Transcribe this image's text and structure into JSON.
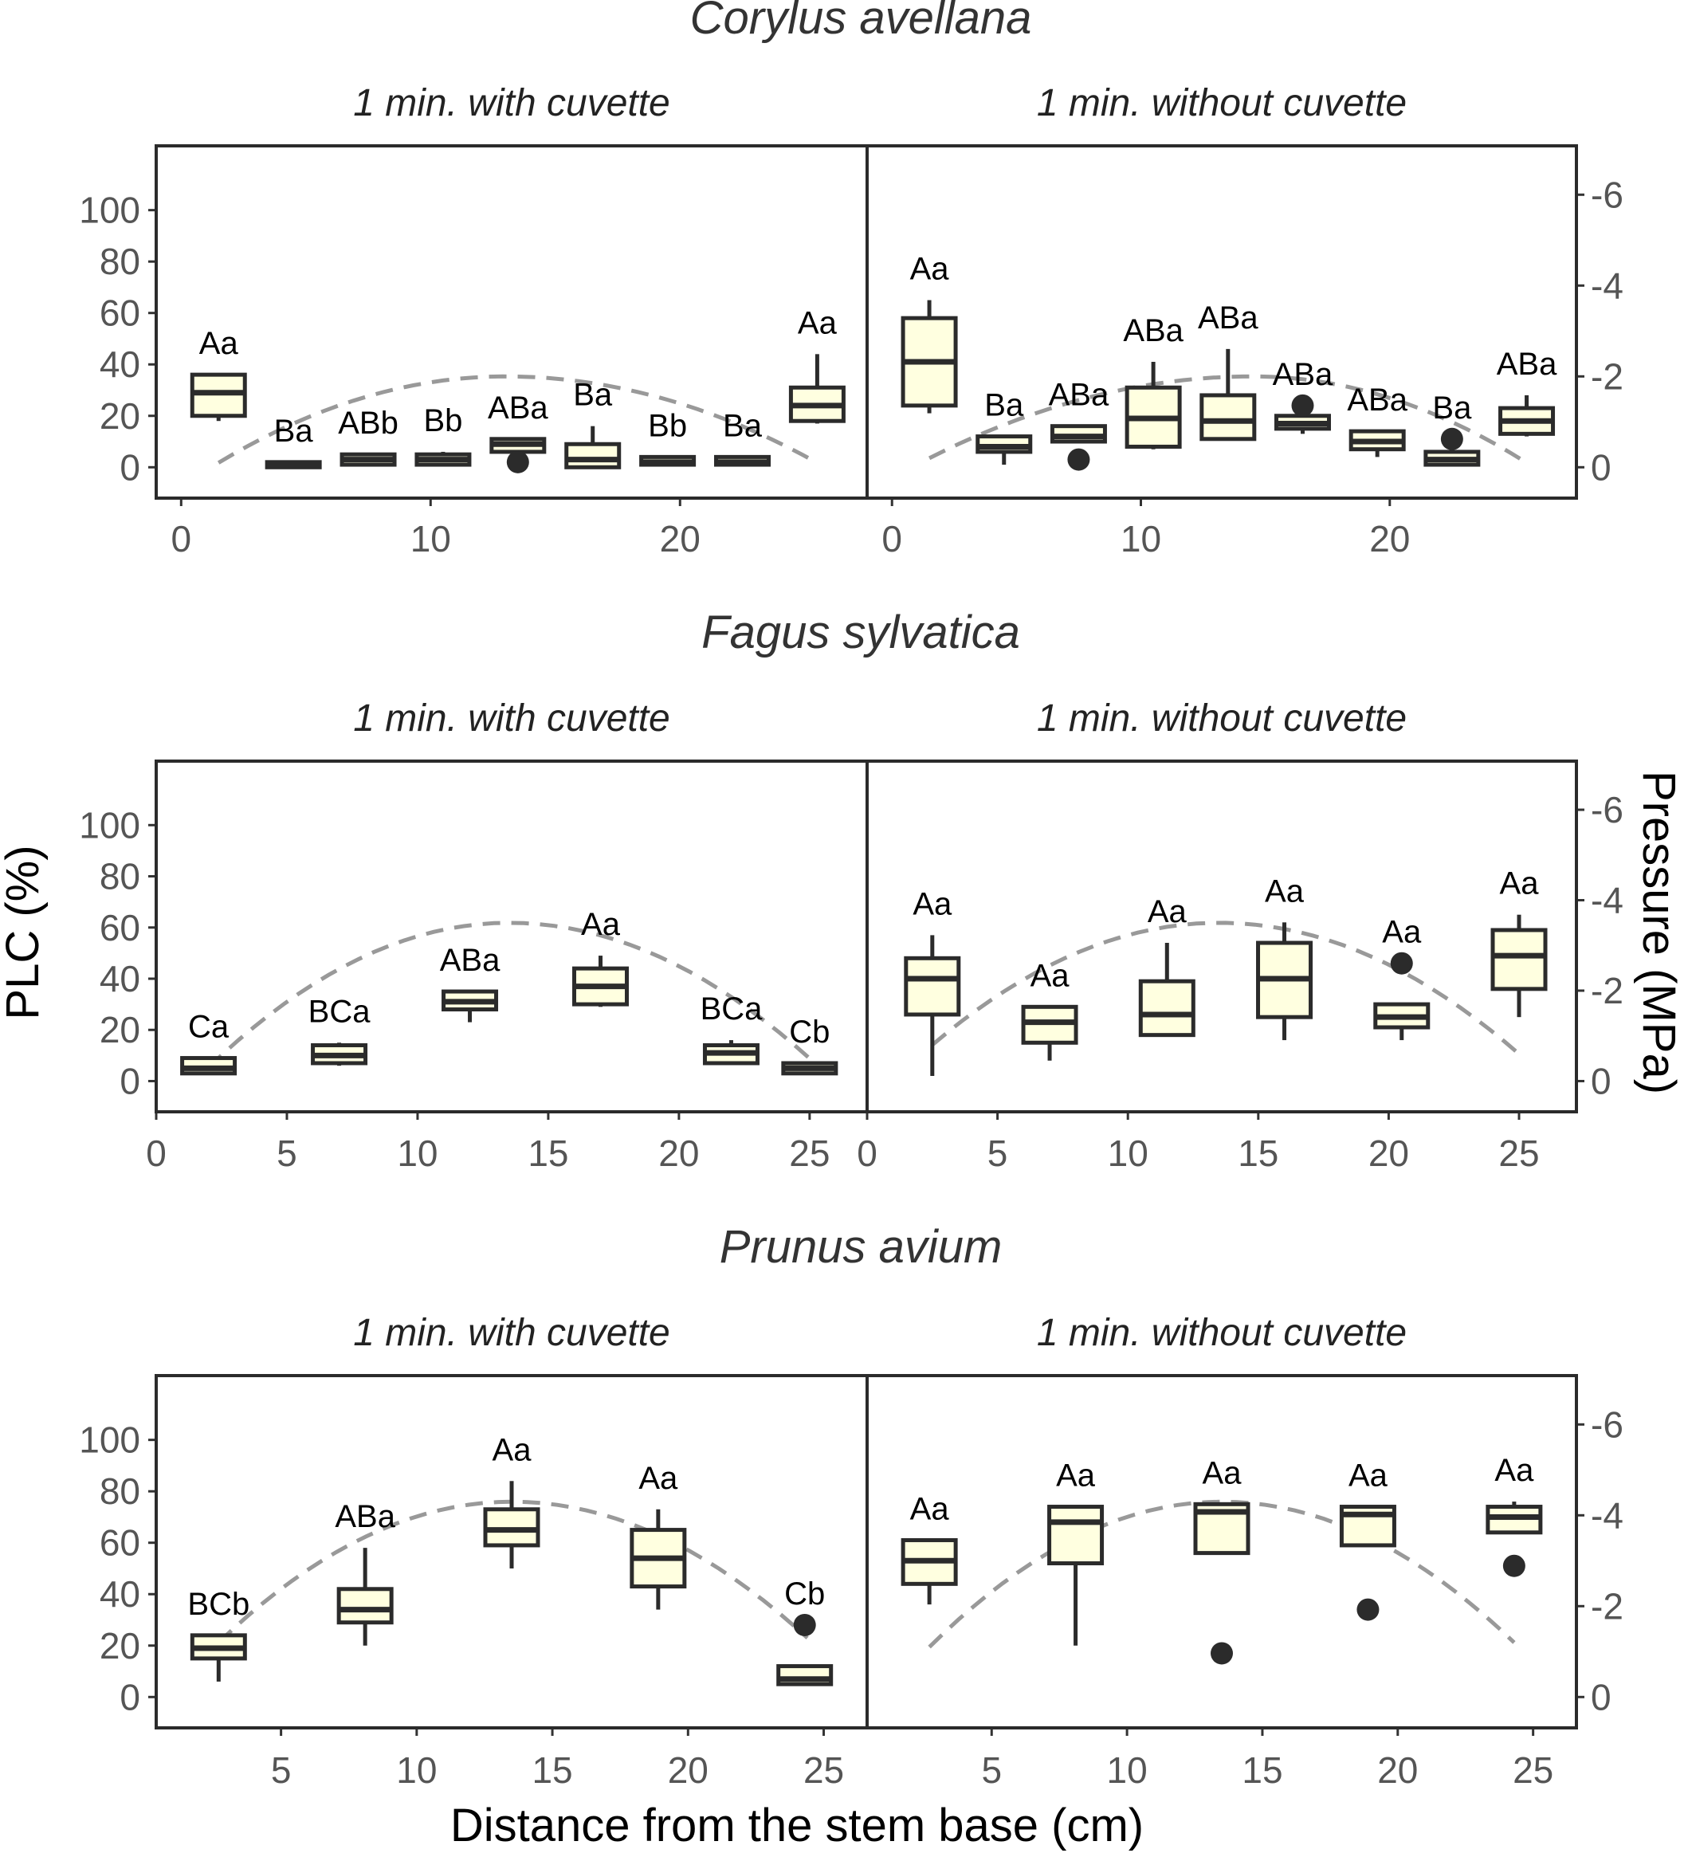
{
  "figure": {
    "xlabel": "Distance from the stem base (cm)",
    "ylabel_left": "PLC (%)",
    "ylabel_right": "Pressure (MPa)"
  },
  "chart_data": [
    {
      "type": "box",
      "species": "Corylus avellana",
      "xlim": [
        -1,
        27.5
      ],
      "ylim": [
        -12,
        125
      ],
      "y2_range": [
        0,
        -6
      ],
      "x_ticks": [
        0,
        10,
        20
      ],
      "y_ticks": [
        0,
        20,
        40,
        60,
        80,
        100
      ],
      "y2_ticks": [
        0,
        -2,
        -4,
        -6
      ],
      "y2_tick_labels": [
        "0",
        "-2",
        "-4",
        "-6"
      ],
      "panels": [
        {
          "title": "1 min. with cuvette",
          "pressure_curve": {
            "peak_x": 13,
            "peak_mpa": -2.0,
            "start_x": 1.5,
            "start_mpa": -0.1,
            "end_x": 25.5,
            "end_mpa": -0.1
          },
          "boxes": [
            {
              "x": 1.5,
              "q1": 20,
              "median": 29,
              "q3": 36,
              "lo": 18,
              "hi": 36,
              "label": "Aa",
              "outliers": []
            },
            {
              "x": 4.5,
              "q1": 0,
              "median": 1,
              "q3": 2,
              "lo": 0,
              "hi": 2,
              "label": "Ba",
              "outliers": []
            },
            {
              "x": 7.5,
              "q1": 1,
              "median": 3,
              "q3": 5,
              "lo": 1,
              "hi": 5,
              "label": "ABb",
              "outliers": []
            },
            {
              "x": 10.5,
              "q1": 1,
              "median": 3,
              "q3": 5,
              "lo": 1,
              "hi": 6,
              "label": "Bb",
              "outliers": []
            },
            {
              "x": 13.5,
              "q1": 6,
              "median": 9,
              "q3": 11,
              "lo": 6,
              "hi": 11,
              "label": "ABa",
              "outliers": [
                2
              ]
            },
            {
              "x": 16.5,
              "q1": 0,
              "median": 3,
              "q3": 9,
              "lo": 0,
              "hi": 16,
              "label": "Ba",
              "outliers": []
            },
            {
              "x": 19.5,
              "q1": 1,
              "median": 2,
              "q3": 4,
              "lo": 1,
              "hi": 4,
              "label": "Bb",
              "outliers": []
            },
            {
              "x": 22.5,
              "q1": 1,
              "median": 2,
              "q3": 4,
              "lo": 1,
              "hi": 4,
              "label": "Ba",
              "outliers": []
            },
            {
              "x": 25.5,
              "q1": 18,
              "median": 24,
              "q3": 31,
              "lo": 17,
              "hi": 44,
              "label": "Aa",
              "outliers": []
            }
          ]
        },
        {
          "title": "1 min. without cuvette",
          "pressure_curve": {
            "peak_x": 14.5,
            "peak_mpa": -2.0,
            "start_x": 1.5,
            "start_mpa": -0.2,
            "end_x": 25.5,
            "end_mpa": -0.1
          },
          "boxes": [
            {
              "x": 1.5,
              "q1": 24,
              "median": 41,
              "q3": 58,
              "lo": 21,
              "hi": 65,
              "label": "Aa",
              "outliers": []
            },
            {
              "x": 4.5,
              "q1": 6,
              "median": 8,
              "q3": 12,
              "lo": 1,
              "hi": 12,
              "label": "Ba",
              "outliers": []
            },
            {
              "x": 7.5,
              "q1": 10,
              "median": 12,
              "q3": 16,
              "lo": 10,
              "hi": 16,
              "label": "ABa",
              "outliers": [
                3
              ]
            },
            {
              "x": 10.5,
              "q1": 8,
              "median": 19,
              "q3": 31,
              "lo": 7,
              "hi": 41,
              "label": "ABa",
              "outliers": []
            },
            {
              "x": 13.5,
              "q1": 11,
              "median": 18,
              "q3": 28,
              "lo": 11,
              "hi": 46,
              "label": "ABa",
              "outliers": []
            },
            {
              "x": 16.5,
              "q1": 15,
              "median": 17,
              "q3": 20,
              "lo": 13,
              "hi": 20,
              "label": "ABa",
              "outliers": [
                24
              ]
            },
            {
              "x": 19.5,
              "q1": 7,
              "median": 10,
              "q3": 14,
              "lo": 4,
              "hi": 14,
              "label": "ABa",
              "outliers": []
            },
            {
              "x": 22.5,
              "q1": 1,
              "median": 3,
              "q3": 6,
              "lo": 1,
              "hi": 6,
              "label": "Ba",
              "outliers": [
                11
              ]
            },
            {
              "x": 25.5,
              "q1": 13,
              "median": 18,
              "q3": 23,
              "lo": 12,
              "hi": 28,
              "label": "ABa",
              "outliers": []
            }
          ]
        }
      ]
    },
    {
      "type": "box",
      "species": "Fagus sylvatica",
      "xlim": [
        0,
        27.2
      ],
      "ylim": [
        -12,
        125
      ],
      "y2_range": [
        0,
        -6
      ],
      "x_ticks": [
        0,
        5,
        10,
        15,
        20,
        25
      ],
      "y_ticks": [
        0,
        20,
        40,
        60,
        80,
        100
      ],
      "y2_ticks": [
        0,
        -2,
        -4,
        -6
      ],
      "y2_tick_labels": [
        "0",
        "-2",
        "-4",
        "-6"
      ],
      "panels": [
        {
          "title": "1 min. with cuvette",
          "pressure_curve": {
            "peak_x": 13.5,
            "peak_mpa": -3.5,
            "start_x": 2,
            "start_mpa": -0.3,
            "end_x": 25,
            "end_mpa": -0.5
          },
          "boxes": [
            {
              "x": 2,
              "q1": 3,
              "median": 5,
              "q3": 9,
              "lo": 3,
              "hi": 9,
              "label": "Ca",
              "outliers": []
            },
            {
              "x": 7,
              "q1": 7,
              "median": 10,
              "q3": 14,
              "lo": 6,
              "hi": 15,
              "label": "BCa",
              "outliers": []
            },
            {
              "x": 12,
              "q1": 28,
              "median": 31,
              "q3": 35,
              "lo": 23,
              "hi": 35,
              "label": "ABa",
              "outliers": []
            },
            {
              "x": 17,
              "q1": 30,
              "median": 37,
              "q3": 44,
              "lo": 29,
              "hi": 49,
              "label": "Aa",
              "outliers": []
            },
            {
              "x": 22,
              "q1": 7,
              "median": 11,
              "q3": 14,
              "lo": 7,
              "hi": 16,
              "label": "BCa",
              "outliers": []
            },
            {
              "x": 25,
              "q1": 3,
              "median": 5,
              "q3": 7,
              "lo": 3,
              "hi": 7,
              "label": "Cb",
              "outliers": []
            }
          ]
        },
        {
          "title": "1 min. without cuvette",
          "pressure_curve": {
            "peak_x": 13.5,
            "peak_mpa": -3.5,
            "start_x": 2.5,
            "start_mpa": -0.8,
            "end_x": 25,
            "end_mpa": -0.6
          },
          "boxes": [
            {
              "x": 2.5,
              "q1": 26,
              "median": 40,
              "q3": 48,
              "lo": 2,
              "hi": 57,
              "label": "Aa",
              "outliers": []
            },
            {
              "x": 7,
              "q1": 15,
              "median": 23,
              "q3": 29,
              "lo": 8,
              "hi": 29,
              "label": "Aa",
              "outliers": []
            },
            {
              "x": 11.5,
              "q1": 18,
              "median": 26,
              "q3": 39,
              "lo": 18,
              "hi": 54,
              "label": "Aa",
              "outliers": []
            },
            {
              "x": 16,
              "q1": 25,
              "median": 40,
              "q3": 54,
              "lo": 16,
              "hi": 62,
              "label": "Aa",
              "outliers": []
            },
            {
              "x": 20.5,
              "q1": 21,
              "median": 25,
              "q3": 30,
              "lo": 16,
              "hi": 30,
              "label": "Aa",
              "outliers": [
                46
              ]
            },
            {
              "x": 25,
              "q1": 36,
              "median": 49,
              "q3": 59,
              "lo": 25,
              "hi": 65,
              "label": "Aa",
              "outliers": []
            }
          ]
        }
      ]
    },
    {
      "type": "box",
      "species": "Prunus avium",
      "xlim": [
        0.4,
        26.6
      ],
      "ylim": [
        -12,
        125
      ],
      "y2_range": [
        0,
        -6
      ],
      "x_ticks": [
        5,
        10,
        15,
        20,
        25
      ],
      "y_ticks": [
        0,
        20,
        40,
        60,
        80,
        100
      ],
      "y2_ticks": [
        0,
        -2,
        -4,
        -6
      ],
      "y2_tick_labels": [
        "0",
        "-2",
        "-4",
        "-6"
      ],
      "panels": [
        {
          "title": "1 min. with cuvette",
          "pressure_curve": {
            "peak_x": 13.5,
            "peak_mpa": -4.3,
            "start_x": 2.7,
            "start_mpa": -1.2,
            "end_x": 24.4,
            "end_mpa": -1.3
          },
          "boxes": [
            {
              "x": 2.7,
              "q1": 15,
              "median": 19,
              "q3": 24,
              "lo": 6,
              "hi": 24,
              "label": "BCb",
              "outliers": []
            },
            {
              "x": 8.1,
              "q1": 29,
              "median": 34,
              "q3": 42,
              "lo": 20,
              "hi": 58,
              "label": "ABa",
              "outliers": []
            },
            {
              "x": 13.5,
              "q1": 59,
              "median": 65,
              "q3": 73,
              "lo": 50,
              "hi": 84,
              "label": "Aa",
              "outliers": []
            },
            {
              "x": 18.9,
              "q1": 43,
              "median": 54,
              "q3": 65,
              "lo": 34,
              "hi": 73,
              "label": "Aa",
              "outliers": []
            },
            {
              "x": 24.3,
              "q1": 5,
              "median": 7,
              "q3": 12,
              "lo": 5,
              "hi": 12,
              "label": "Cb",
              "outliers": [
                28
              ]
            }
          ]
        },
        {
          "title": "1 min. without cuvette",
          "pressure_curve": {
            "peak_x": 13.5,
            "peak_mpa": -4.3,
            "start_x": 2.7,
            "start_mpa": -1.1,
            "end_x": 24.3,
            "end_mpa": -1.2
          },
          "boxes": [
            {
              "x": 2.7,
              "q1": 44,
              "median": 53,
              "q3": 61,
              "lo": 36,
              "hi": 61,
              "label": "Aa",
              "outliers": []
            },
            {
              "x": 8.1,
              "q1": 52,
              "median": 68,
              "q3": 74,
              "lo": 20,
              "hi": 74,
              "label": "Aa",
              "outliers": []
            },
            {
              "x": 13.5,
              "q1": 56,
              "median": 72,
              "q3": 75,
              "lo": 56,
              "hi": 75,
              "label": "Aa",
              "outliers": [
                17
              ]
            },
            {
              "x": 18.9,
              "q1": 59,
              "median": 71,
              "q3": 74,
              "lo": 59,
              "hi": 74,
              "label": "Aa",
              "outliers": [
                34
              ]
            },
            {
              "x": 24.3,
              "q1": 64,
              "median": 70,
              "q3": 74,
              "lo": 64,
              "hi": 76,
              "label": "Aa",
              "outliers": [
                51
              ]
            }
          ]
        }
      ]
    }
  ]
}
